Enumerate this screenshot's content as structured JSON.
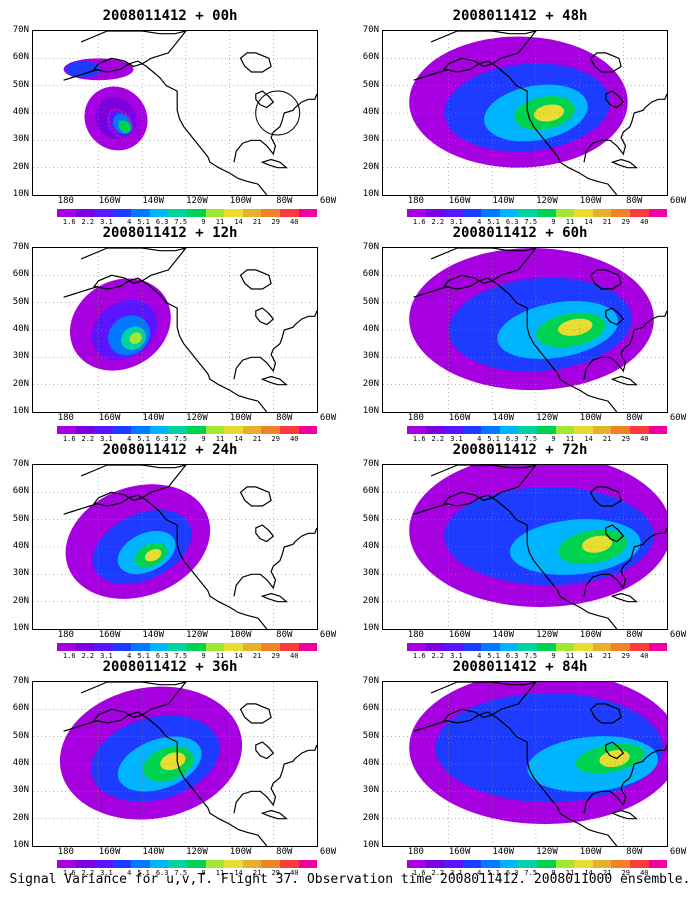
{
  "figure": {
    "footer": "Signal Variance for u,v,T. Flight 37. Observation time 2008011412. 2008011000 ensemble."
  },
  "panels": [
    {
      "title": "2008011412 + 00h",
      "lead": "00h",
      "level": 0
    },
    {
      "title": "2008011412 + 48h",
      "lead": "48h",
      "level": 4
    },
    {
      "title": "2008011412 + 12h",
      "lead": "12h",
      "level": 1
    },
    {
      "title": "2008011412 + 60h",
      "lead": "60h",
      "level": 5
    },
    {
      "title": "2008011412 + 24h",
      "lead": "24h",
      "level": 2
    },
    {
      "title": "2008011412 + 72h",
      "lead": "72h",
      "level": 6
    },
    {
      "title": "2008011412 + 36h",
      "lead": "36h",
      "level": 3
    },
    {
      "title": "2008011412 + 84h",
      "lead": "84h",
      "level": 7
    }
  ],
  "axes": {
    "lat_labels": [
      "70N",
      "60N",
      "50N",
      "40N",
      "30N",
      "20N",
      "10N"
    ],
    "lon_labels": [
      "180",
      "160W",
      "140W",
      "120W",
      "100W",
      "80W",
      "60W"
    ]
  },
  "colorbar": {
    "labels": [
      "1.6",
      "2.2",
      "3.1",
      "4",
      "5.1",
      "6.3",
      "7.5",
      "9",
      "11",
      "14",
      "21",
      "29",
      "40"
    ],
    "colors": [
      "#a600e0",
      "#7a00e0",
      "#5a14ff",
      "#1e3cff",
      "#0078ff",
      "#00b4ff",
      "#00d2a0",
      "#00d250",
      "#a0e632",
      "#e6dc32",
      "#e6af2d",
      "#f08228",
      "#fa3c3c",
      "#f000a0"
    ]
  },
  "map_colors": {
    "land_line": "#000000",
    "grid": "#888888",
    "observation_marker": "#ff0080"
  }
}
